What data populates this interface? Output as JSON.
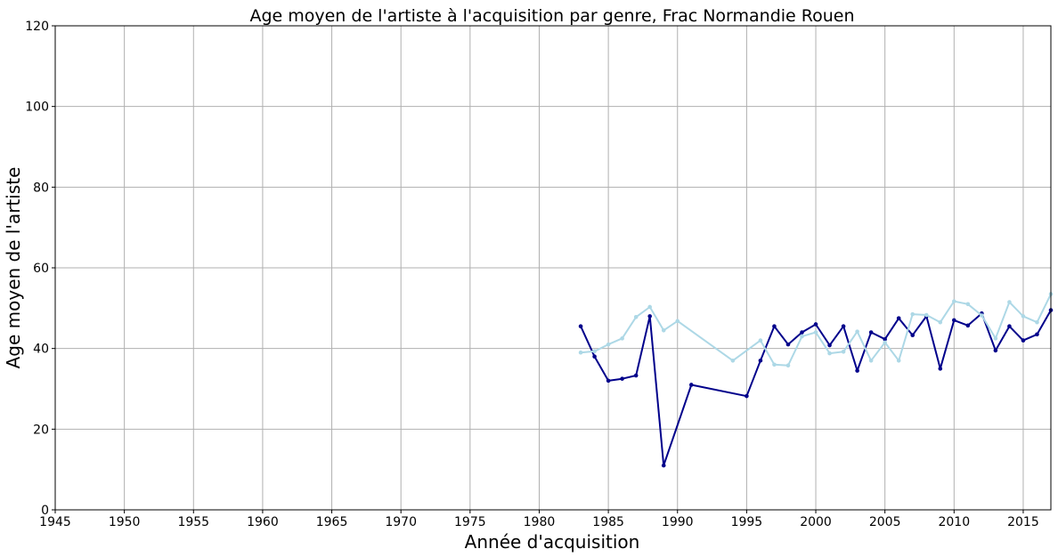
{
  "chart_data": {
    "type": "line",
    "title": "Age moyen de l'artiste à l'acquisition par genre, Frac Normandie Rouen",
    "xlabel": "Année d'acquisition",
    "ylabel": "Age moyen de l'artiste",
    "xlim": [
      1945,
      2017
    ],
    "ylim": [
      0,
      120
    ],
    "xticks": [
      "1945",
      "1950",
      "1955",
      "1960",
      "1965",
      "1970",
      "1975",
      "1980",
      "1985",
      "1990",
      "1995",
      "2000",
      "2005",
      "2010",
      "2015"
    ],
    "yticks": [
      "0",
      "20",
      "40",
      "60",
      "80",
      "100",
      "120"
    ],
    "grid": true,
    "legend": "none",
    "series": [
      {
        "color": "#00008b",
        "points": [
          [
            1983,
            45.5
          ],
          [
            1984,
            38
          ],
          [
            1985,
            32
          ],
          [
            1986,
            32.5
          ],
          [
            1987,
            33.3
          ],
          [
            1988,
            48
          ],
          [
            1989,
            11
          ],
          [
            1991,
            31
          ],
          [
            1995,
            28.2
          ],
          [
            1996,
            37
          ],
          [
            1997,
            45.5
          ],
          [
            1998,
            41
          ],
          [
            1999,
            44
          ],
          [
            2000,
            46
          ],
          [
            2001,
            40.8
          ],
          [
            2002,
            45.5
          ],
          [
            2003,
            34.5
          ],
          [
            2004,
            44
          ],
          [
            2005,
            42.3
          ],
          [
            2006,
            47.5
          ],
          [
            2007,
            43.3
          ],
          [
            2008,
            48
          ],
          [
            2009,
            35
          ],
          [
            2010,
            47
          ],
          [
            2011,
            45.7
          ],
          [
            2012,
            48.7
          ],
          [
            2013,
            39.5
          ],
          [
            2014,
            45.5
          ],
          [
            2015,
            42
          ],
          [
            2016,
            43.5
          ],
          [
            2017,
            49.5
          ]
        ]
      },
      {
        "color": "#add8e6",
        "points": [
          [
            1983,
            39
          ],
          [
            1984,
            39.3
          ],
          [
            1985,
            41
          ],
          [
            1986,
            42.5
          ],
          [
            1987,
            47.8
          ],
          [
            1988,
            50.3
          ],
          [
            1989,
            44.5
          ],
          [
            1990,
            46.8
          ],
          [
            1994,
            37
          ],
          [
            1996,
            42
          ],
          [
            1997,
            36
          ],
          [
            1998,
            35.8
          ],
          [
            1999,
            43
          ],
          [
            2000,
            44
          ],
          [
            2001,
            38.8
          ],
          [
            2002,
            39.2
          ],
          [
            2003,
            44.2
          ],
          [
            2004,
            37
          ],
          [
            2005,
            41.5
          ],
          [
            2006,
            37
          ],
          [
            2007,
            48.5
          ],
          [
            2008,
            48.3
          ],
          [
            2009,
            46.5
          ],
          [
            2010,
            51.7
          ],
          [
            2011,
            51
          ],
          [
            2012,
            48.2
          ],
          [
            2013,
            42.5
          ],
          [
            2014,
            51.5
          ],
          [
            2015,
            48
          ],
          [
            2016,
            46.5
          ],
          [
            2017,
            53.5
          ]
        ]
      }
    ]
  }
}
